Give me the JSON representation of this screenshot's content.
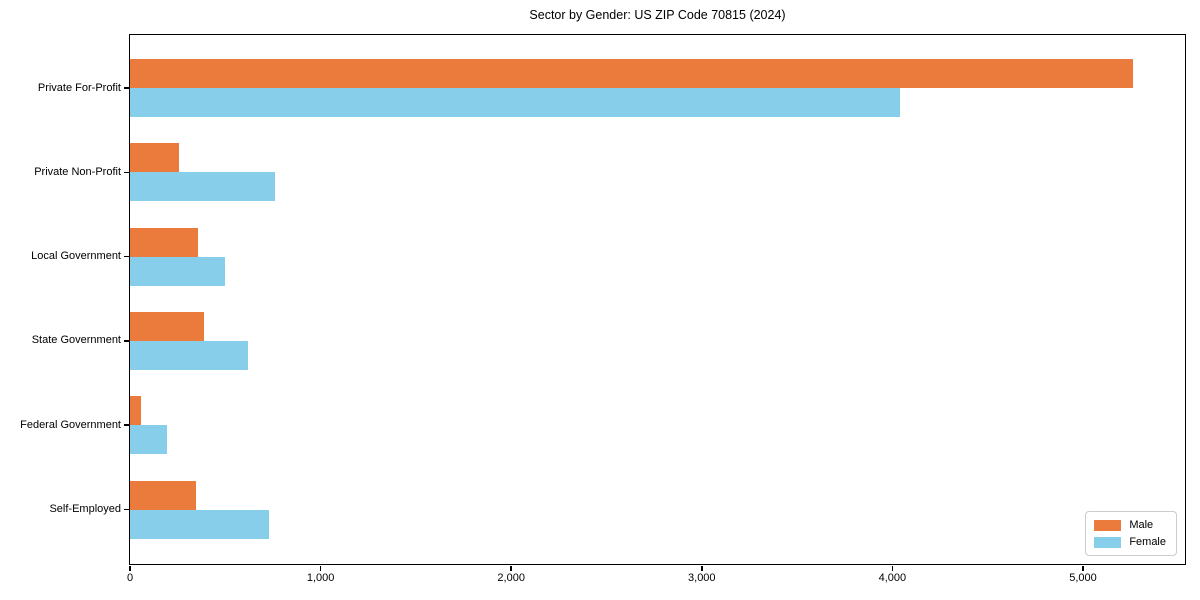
{
  "chart_data": {
    "type": "bar",
    "orientation": "horizontal",
    "title": "Sector by Gender: US ZIP Code 70815 (2024)",
    "xlabel": "",
    "ylabel": "",
    "categories": [
      "Private For-Profit",
      "Private Non-Profit",
      "Local Government",
      "State Government",
      "Federal Government",
      "Self-Employed"
    ],
    "series": [
      {
        "name": "Male",
        "color": "#EA7B3C",
        "values": [
          5260,
          255,
          355,
          390,
          60,
          345
        ]
      },
      {
        "name": "Female",
        "color": "#87CEEB",
        "values": [
          4040,
          760,
          500,
          620,
          195,
          730
        ]
      }
    ],
    "xlim": [
      0,
      5530
    ],
    "x_ticks": [
      0,
      1000,
      2000,
      3000,
      4000,
      5000
    ],
    "x_tick_labels": [
      "0",
      "1,000",
      "2,000",
      "3,000",
      "4,000",
      "5,000"
    ],
    "grid": false,
    "legend_position": "lower right",
    "frame_color": "#000000",
    "background_color": "#ffffff"
  }
}
